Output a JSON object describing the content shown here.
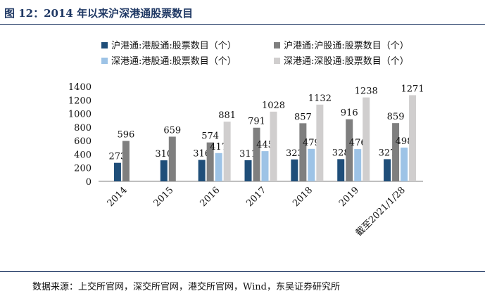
{
  "figure_title": "图 12：2014 年以来沪深港通股票数目",
  "source_note": "数据来源：上交所官网，深交所官网，港交所官网，Wind，东吴证券研究所",
  "colors": {
    "frame": "#1f3864"
  },
  "chart_data": {
    "type": "bar",
    "categories": [
      "2014",
      "2015",
      "2016",
      "2017",
      "2018",
      "2019",
      "截至2021/1/28"
    ],
    "series": [
      {
        "name": "沪港通:港股通:股票数目（个）",
        "color": "#1f4e79",
        "values": [
          273,
          310,
          316,
          311,
          323,
          328,
          327
        ]
      },
      {
        "name": "沪港通:沪股通:股票数目（个）",
        "color": "#7f7f7f",
        "values": [
          596,
          659,
          574,
          791,
          857,
          916,
          859
        ]
      },
      {
        "name": "深港通:港股通:股票数目（个）",
        "color": "#9dc3e6",
        "values": [
          null,
          null,
          417,
          445,
          479,
          476,
          498
        ]
      },
      {
        "name": "深港通:深股通:股票数目（个）",
        "color": "#d0cece",
        "values": [
          null,
          null,
          881,
          1028,
          1132,
          1238,
          1271
        ]
      }
    ],
    "ylim": [
      0,
      1400
    ],
    "yticks": [
      0,
      200,
      400,
      600,
      800,
      1000,
      1200,
      1400
    ],
    "legend": "top",
    "grid": false
  }
}
